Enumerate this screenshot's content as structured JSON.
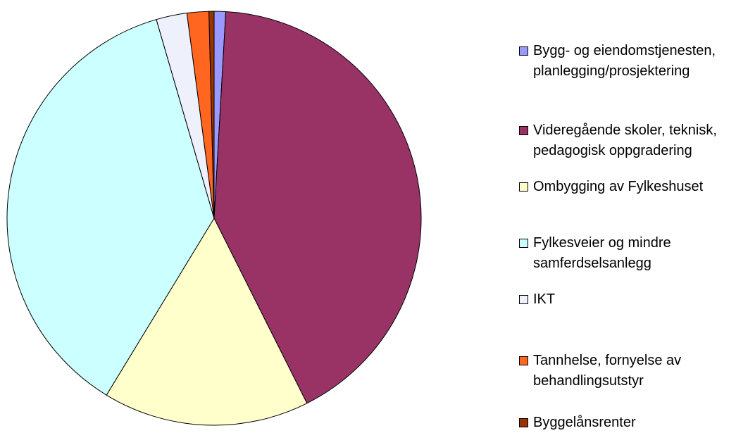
{
  "chart_data": {
    "type": "pie",
    "categories": [
      "Bygg- og eiendomstjenesten, planlegging/prosjektering",
      "Videregående skoler, teknisk, pedagogisk oppgradering",
      "Ombygging av Fylkeshuset",
      "Fylkesveier og mindre samferdselsanlegg",
      "IKT",
      "Tannhelse, fornyelse av behandlingsutstyr",
      "Byggelånsrenter"
    ],
    "values": [
      0.9,
      41.7,
      16.1,
      36.8,
      2.4,
      1.7,
      0.4
    ],
    "colors": [
      "#9999ff",
      "#993366",
      "#ffffcc",
      "#ccffff",
      "#eef0fb",
      "#ff6620",
      "#993300"
    ],
    "legend": "right"
  }
}
